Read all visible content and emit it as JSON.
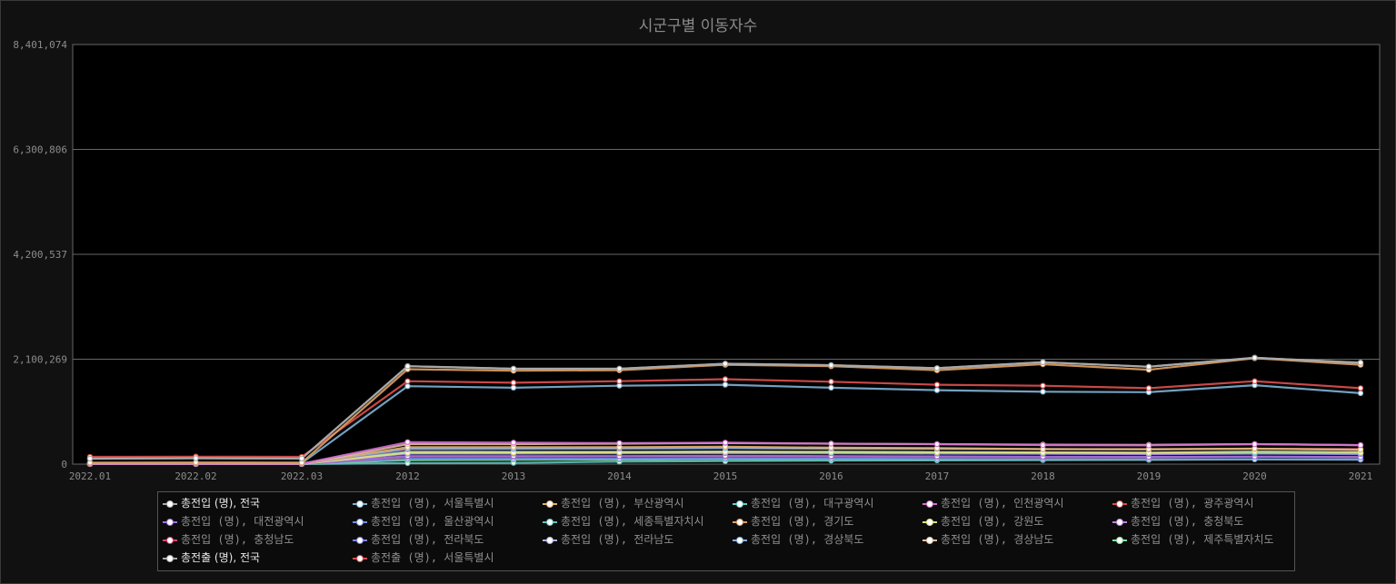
{
  "chart_data": {
    "type": "line",
    "title": "시군구별 이동자수",
    "categories": [
      "2022.01",
      "2022.02",
      "2022.03",
      "2012",
      "2013",
      "2014",
      "2015",
      "2016",
      "2017",
      "2018",
      "2019",
      "2020",
      "2021"
    ],
    "y_ticks": [
      "0",
      "2,100,269",
      "4,200,537",
      "6,300,806",
      "8,401,074"
    ],
    "ylim": [
      0,
      8401074
    ],
    "grid": true,
    "legend_position": "bottom",
    "series": [
      {
        "name": "총전입 (명), 전국",
        "color": "#aaaaaa",
        "selected": true,
        "values": [
          110000,
          118000,
          112000,
          1960000,
          1910000,
          1910000,
          2010000,
          1980000,
          1920000,
          2040000,
          1950000,
          2130000,
          2030000
        ]
      },
      {
        "name": "총전입 (명), 서울특별시",
        "color": "#7fb3d5",
        "values": [
          20000,
          21000,
          20000,
          1560000,
          1530000,
          1570000,
          1590000,
          1530000,
          1480000,
          1450000,
          1440000,
          1580000,
          1420000
        ]
      },
      {
        "name": "총전입 (명), 부산광역시",
        "color": "#e0b070",
        "values": [
          8000,
          8500,
          8000,
          340000,
          340000,
          340000,
          350000,
          330000,
          320000,
          300000,
          300000,
          310000,
          290000
        ]
      },
      {
        "name": "총전입 (명), 대구광역시",
        "color": "#66cccc",
        "values": [
          6000,
          6300,
          6000,
          250000,
          245000,
          245000,
          250000,
          240000,
          235000,
          230000,
          225000,
          230000,
          220000
        ]
      },
      {
        "name": "총전입 (명), 인천광역시",
        "color": "#d070d0",
        "values": [
          7000,
          7500,
          7000,
          440000,
          430000,
          420000,
          430000,
          410000,
          400000,
          380000,
          375000,
          400000,
          380000
        ]
      },
      {
        "name": "총전입 (명), 광주광역시",
        "color": "#d05050",
        "values": [
          3500,
          3700,
          3500,
          150000,
          150000,
          155000,
          155000,
          150000,
          145000,
          140000,
          140000,
          150000,
          145000
        ]
      },
      {
        "name": "총전입 (명), 대전광역시",
        "color": "#a070e0",
        "values": [
          3500,
          3700,
          3500,
          160000,
          160000,
          160000,
          165000,
          160000,
          155000,
          150000,
          145000,
          150000,
          140000
        ]
      },
      {
        "name": "총전입 (명), 울산광역시",
        "color": "#7090e0",
        "values": [
          2500,
          2600,
          2500,
          110000,
          110000,
          110000,
          115000,
          110000,
          105000,
          100000,
          98000,
          100000,
          95000
        ]
      },
      {
        "name": "총전입 (명), 세종특별자치시",
        "color": "#60c0c0",
        "values": [
          1000,
          1100,
          1000,
          20000,
          25000,
          50000,
          60000,
          70000,
          75000,
          80000,
          85000,
          95000,
          90000
        ]
      },
      {
        "name": "총전입 (명), 경기도",
        "color": "#e0a060",
        "values": [
          30000,
          32000,
          30000,
          1900000,
          1870000,
          1880000,
          1990000,
          1960000,
          1880000,
          2000000,
          1890000,
          2120000,
          1990000
        ]
      },
      {
        "name": "총전입 (명), 강원도",
        "color": "#e0e080",
        "values": [
          4000,
          4200,
          4000,
          230000,
          235000,
          240000,
          250000,
          245000,
          240000,
          235000,
          230000,
          250000,
          240000
        ]
      },
      {
        "name": "총전입 (명), 충청북도",
        "color": "#c080e0",
        "values": [
          4000,
          4200,
          4000,
          220000,
          220000,
          225000,
          230000,
          225000,
          220000,
          215000,
          210000,
          220000,
          215000
        ]
      },
      {
        "name": "총전입 (명), 충청남도",
        "color": "#e04070",
        "values": [
          5000,
          5200,
          5000,
          300000,
          305000,
          310000,
          320000,
          315000,
          310000,
          300000,
          295000,
          310000,
          300000
        ]
      },
      {
        "name": "총전입 (명), 전라북도",
        "color": "#8080e0",
        "values": [
          3500,
          3700,
          3500,
          210000,
          210000,
          215000,
          220000,
          215000,
          210000,
          205000,
          200000,
          210000,
          200000
        ]
      },
      {
        "name": "총전입 (명), 전라남도",
        "color": "#b0b0e0",
        "values": [
          4000,
          4200,
          4000,
          230000,
          230000,
          235000,
          240000,
          235000,
          230000,
          225000,
          220000,
          225000,
          215000
        ]
      },
      {
        "name": "총전입 (명), 경상북도",
        "color": "#80b0e0",
        "values": [
          5000,
          5200,
          5000,
          310000,
          310000,
          315000,
          320000,
          310000,
          305000,
          300000,
          295000,
          305000,
          290000
        ]
      },
      {
        "name": "총전입 (명), 경상남도",
        "color": "#e0c0a0",
        "values": [
          6000,
          6300,
          6000,
          400000,
          400000,
          410000,
          420000,
          410000,
          400000,
          390000,
          385000,
          400000,
          380000
        ]
      },
      {
        "name": "총전입 (명), 제주특별자치도",
        "color": "#80e0a0",
        "values": [
          1500,
          1600,
          1500,
          80000,
          85000,
          90000,
          100000,
          100000,
          98000,
          95000,
          90000,
          95000,
          92000
        ]
      },
      {
        "name": "총전출 (명), 전국",
        "color": "#aaaaaa",
        "selected": true,
        "values": [
          110000,
          118000,
          112000,
          1960000,
          1910000,
          1910000,
          2010000,
          1980000,
          1920000,
          2040000,
          1950000,
          2130000,
          2030000
        ]
      },
      {
        "name": "총전출 (명), 서울특별시",
        "color": "#e05050",
        "values": [
          145000,
          150000,
          145000,
          1660000,
          1630000,
          1660000,
          1700000,
          1650000,
          1590000,
          1570000,
          1520000,
          1660000,
          1520000
        ]
      }
    ]
  }
}
